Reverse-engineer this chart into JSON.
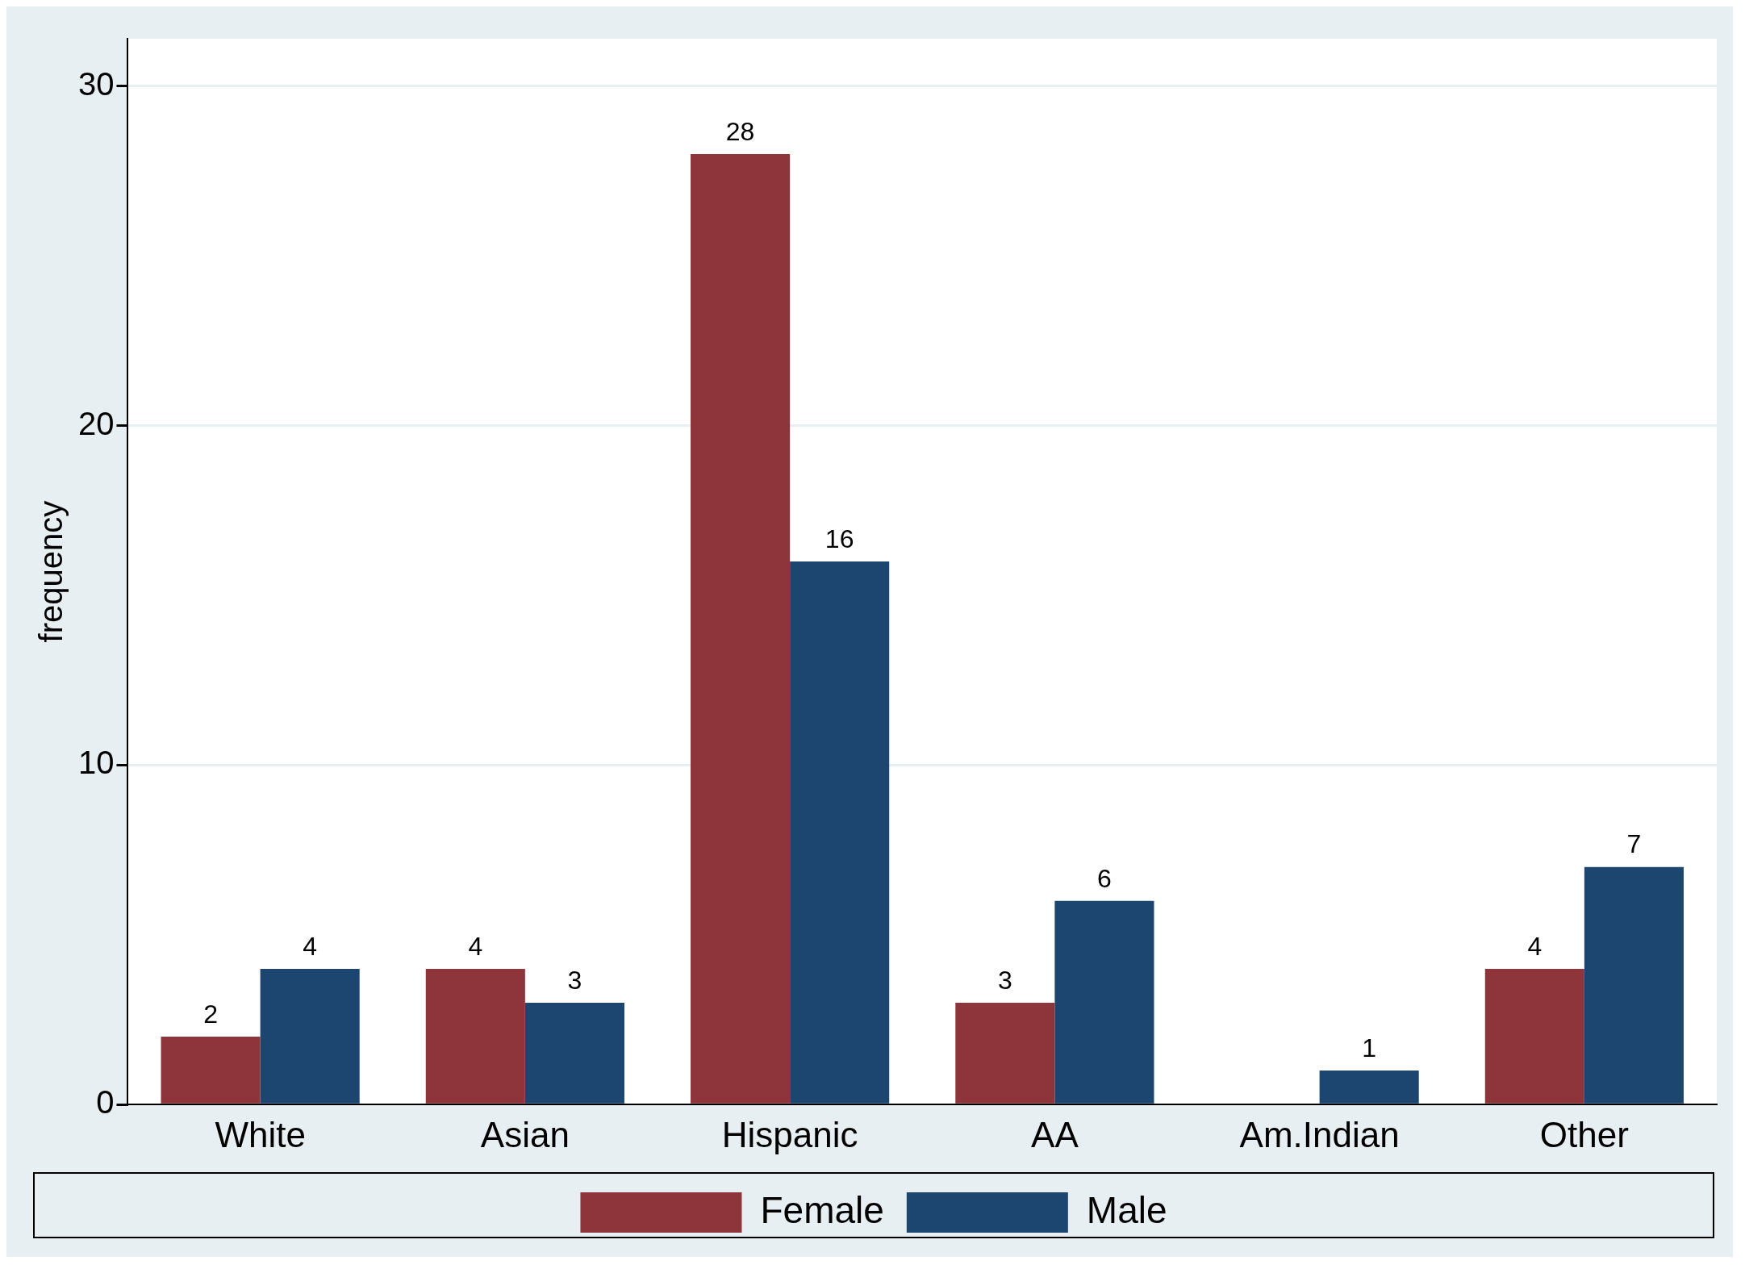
{
  "chart_data": {
    "type": "bar",
    "ylabel": "frequency",
    "categories": [
      "White",
      "Asian",
      "Hispanic",
      "AA",
      "Am.Indian",
      "Other"
    ],
    "series": [
      {
        "name": "Female",
        "color": "#8e353b",
        "values": [
          2,
          4,
          28,
          3,
          0,
          4
        ],
        "value_labels": [
          "2",
          "4",
          "28",
          "3",
          null,
          "4"
        ]
      },
      {
        "name": "Male",
        "color": "#1c4670",
        "values": [
          4,
          3,
          16,
          6,
          1,
          7
        ],
        "value_labels": [
          "4",
          "3",
          "16",
          "6",
          "1",
          "7"
        ]
      }
    ],
    "ylim": [
      0,
      31.4
    ],
    "yticks": [
      0,
      10,
      20,
      30
    ],
    "grid": "y",
    "legend": "bottom"
  }
}
